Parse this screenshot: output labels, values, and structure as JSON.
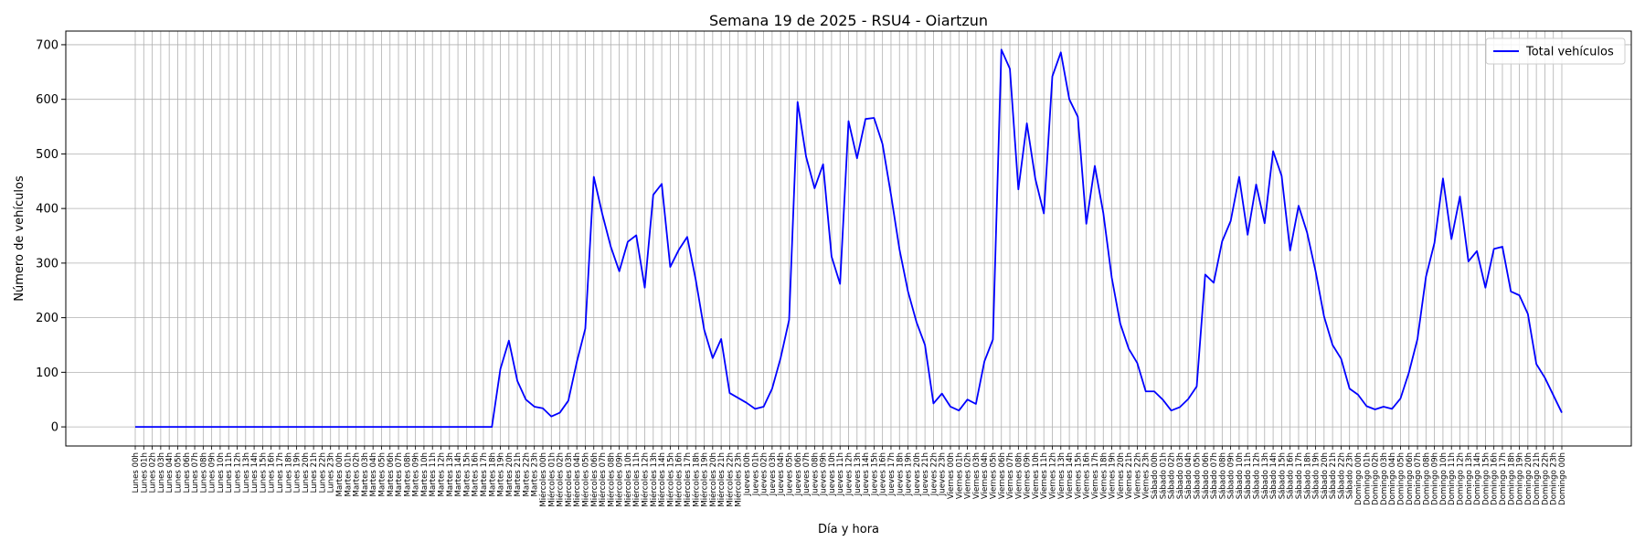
{
  "chart_data": {
    "type": "line",
    "title": "Semana 19 de 2025 - RSU4 - Oiartzun",
    "xlabel": "Día y hora",
    "ylabel": "Número de vehículos",
    "ylim": [
      -35,
      725
    ],
    "yticks": [
      0,
      100,
      200,
      300,
      400,
      500,
      600,
      700
    ],
    "grid": true,
    "legend_position": "top-right",
    "days": [
      "Lunes",
      "Martes",
      "Miércoles",
      "Jueves",
      "Viernes",
      "Sábado",
      "Domingo"
    ],
    "series": [
      {
        "name": "Total vehículos",
        "color": "#0000ff",
        "values": [
          0,
          0,
          0,
          0,
          0,
          0,
          0,
          0,
          0,
          0,
          0,
          0,
          0,
          0,
          0,
          0,
          0,
          0,
          0,
          0,
          0,
          0,
          0,
          0,
          0,
          0,
          0,
          0,
          0,
          0,
          0,
          0,
          0,
          0,
          0,
          0,
          0,
          0,
          0,
          0,
          0,
          0,
          0,
          106,
          158,
          84,
          50,
          37,
          34,
          19,
          26,
          48,
          119,
          180,
          458,
          390,
          330,
          285,
          339,
          351,
          255,
          425,
          445,
          293,
          324,
          348,
          270,
          178,
          126,
          161,
          62,
          53,
          44,
          33,
          37,
          70,
          126,
          196,
          595,
          495,
          437,
          481,
          312,
          262,
          560,
          492,
          564,
          566,
          518,
          425,
          325,
          248,
          192,
          150,
          43,
          61,
          37,
          30,
          50,
          42,
          120,
          160,
          691,
          656,
          435,
          556,
          454,
          391,
          642,
          686,
          600,
          568,
          372,
          478,
          392,
          273,
          189,
          143,
          117,
          65,
          65,
          50,
          30,
          36,
          51,
          74,
          279,
          264,
          340,
          377,
          458,
          352,
          444,
          373,
          505,
          460,
          323,
          405,
          356,
          285,
          202,
          150,
          125,
          70,
          59,
          38,
          32,
          37,
          33,
          52,
          100,
          161,
          275,
          337,
          455,
          344,
          422,
          303,
          322,
          255,
          326,
          330,
          248,
          241,
          207,
          115,
          90,
          58,
          26
        ]
      }
    ]
  }
}
